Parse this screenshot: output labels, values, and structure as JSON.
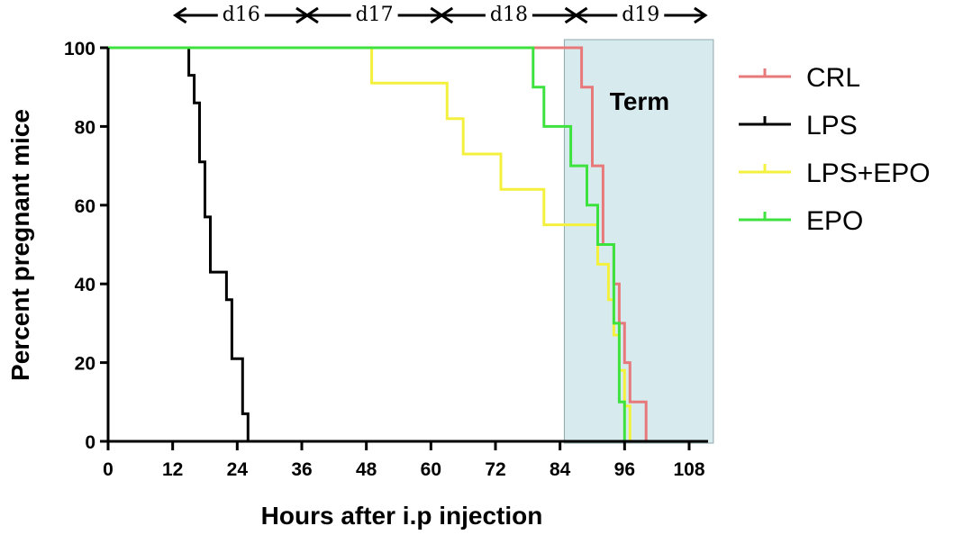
{
  "chart_data": {
    "type": "line",
    "step": true,
    "xlabel": "Hours after i.p injection",
    "ylabel": "Percent pregnant mice",
    "xlim": [
      0,
      112
    ],
    "ylim": [
      0,
      100
    ],
    "x_ticks": [
      0,
      12,
      24,
      36,
      48,
      60,
      72,
      84,
      96,
      108
    ],
    "y_ticks": [
      0,
      20,
      40,
      60,
      80,
      100
    ],
    "legend_position": "right",
    "shaded_region": {
      "label": "Term",
      "x_range": [
        84.8,
        112.5
      ],
      "color": "#d7eaee"
    },
    "day_ranges": [
      {
        "label": "d16",
        "x_range": [
          12.5,
          37
        ]
      },
      {
        "label": "d17",
        "x_range": [
          37,
          62
        ]
      },
      {
        "label": "d18",
        "x_range": [
          62,
          87
        ]
      },
      {
        "label": "d19",
        "x_range": [
          87,
          111
        ]
      }
    ],
    "series": [
      {
        "name": "CRL",
        "color": "#e8797a",
        "points": [
          [
            0,
            100
          ],
          [
            88,
            100
          ],
          [
            88,
            90
          ],
          [
            90,
            90
          ],
          [
            90,
            70
          ],
          [
            92,
            70
          ],
          [
            92,
            50
          ],
          [
            94,
            50
          ],
          [
            94,
            40
          ],
          [
            95,
            40
          ],
          [
            95,
            30
          ],
          [
            96,
            30
          ],
          [
            96,
            20
          ],
          [
            97,
            20
          ],
          [
            97,
            10
          ],
          [
            100,
            10
          ],
          [
            100,
            0
          ]
        ]
      },
      {
        "name": "LPS",
        "color": "#000000",
        "points": [
          [
            0,
            100
          ],
          [
            15,
            100
          ],
          [
            15,
            93
          ],
          [
            16,
            93
          ],
          [
            16,
            86
          ],
          [
            17,
            86
          ],
          [
            17,
            71
          ],
          [
            18,
            71
          ],
          [
            18,
            57
          ],
          [
            19,
            57
          ],
          [
            19,
            43
          ],
          [
            22,
            43
          ],
          [
            22,
            36
          ],
          [
            23,
            36
          ],
          [
            23,
            21
          ],
          [
            25,
            21
          ],
          [
            25,
            7
          ],
          [
            26,
            7
          ],
          [
            26,
            0
          ],
          [
            111,
            0
          ]
        ]
      },
      {
        "name": "LPS+EPO",
        "color": "#f4f03e",
        "points": [
          [
            0,
            100
          ],
          [
            49,
            100
          ],
          [
            49,
            91
          ],
          [
            63,
            91
          ],
          [
            63,
            82
          ],
          [
            66,
            82
          ],
          [
            66,
            73
          ],
          [
            73,
            73
          ],
          [
            73,
            64
          ],
          [
            81,
            64
          ],
          [
            81,
            55
          ],
          [
            91,
            55
          ],
          [
            91,
            45
          ],
          [
            93,
            45
          ],
          [
            93,
            36
          ],
          [
            94,
            36
          ],
          [
            94,
            27
          ],
          [
            95,
            27
          ],
          [
            95,
            18
          ],
          [
            96,
            18
          ],
          [
            96,
            9
          ],
          [
            97,
            9
          ],
          [
            97,
            0
          ]
        ]
      },
      {
        "name": "EPO",
        "color": "#3ee23e",
        "points": [
          [
            0,
            100
          ],
          [
            79,
            100
          ],
          [
            79,
            90
          ],
          [
            81,
            90
          ],
          [
            81,
            80
          ],
          [
            86,
            80
          ],
          [
            86,
            70
          ],
          [
            89,
            70
          ],
          [
            89,
            60
          ],
          [
            91,
            60
          ],
          [
            91,
            50
          ],
          [
            94,
            50
          ],
          [
            94,
            30
          ],
          [
            95,
            30
          ],
          [
            95,
            10
          ],
          [
            96,
            10
          ],
          [
            96,
            0
          ],
          [
            98,
            0
          ]
        ]
      }
    ]
  }
}
